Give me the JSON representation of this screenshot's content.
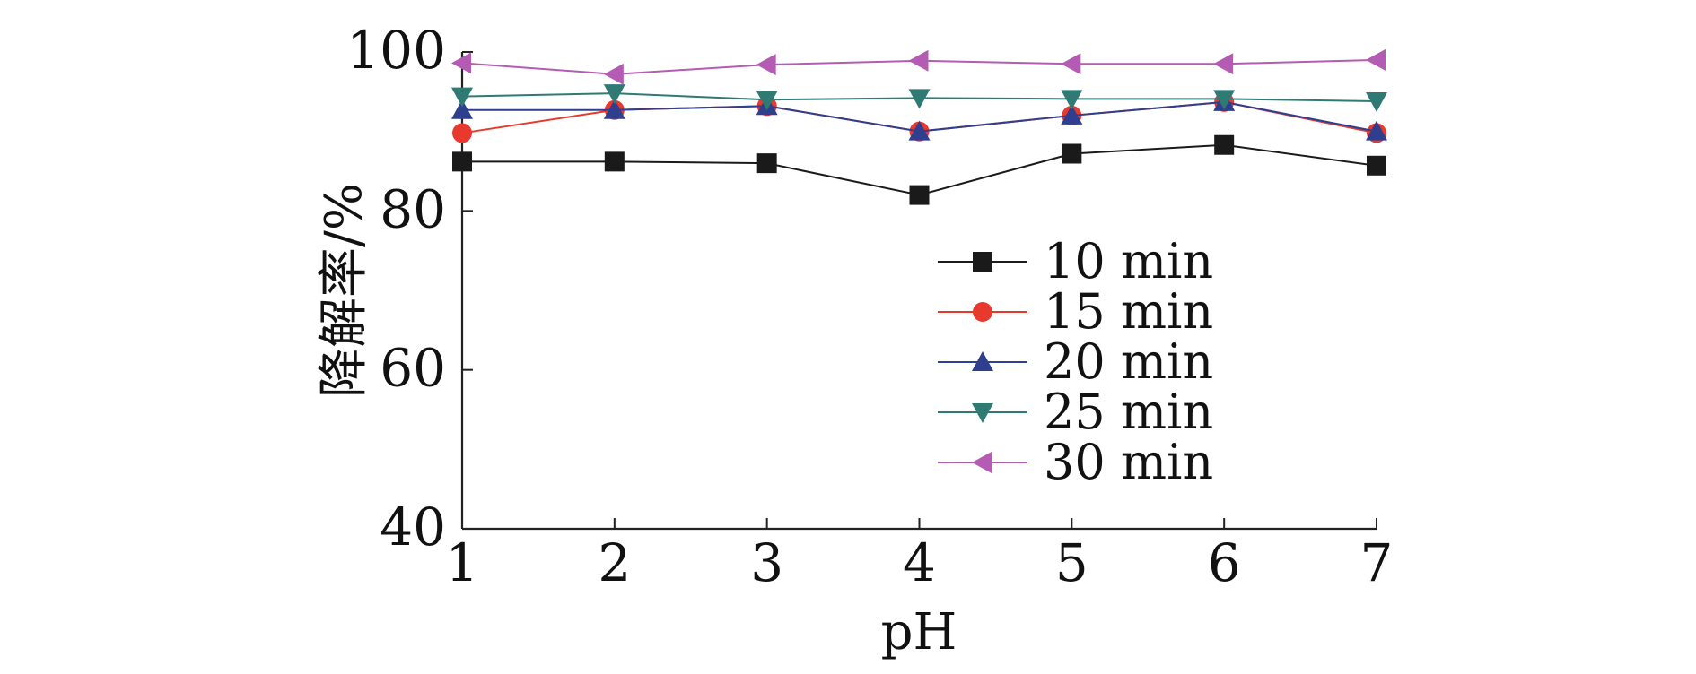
{
  "chart_data": {
    "type": "line",
    "xlabel": "pH",
    "ylabel": "降解率/%",
    "x": [
      1,
      2,
      3,
      4,
      5,
      6,
      7
    ],
    "xlim": [
      1,
      7
    ],
    "ylim": [
      40,
      100
    ],
    "xticks": [
      1,
      2,
      3,
      4,
      5,
      6,
      7
    ],
    "yticks": [
      40,
      60,
      80,
      100
    ],
    "grid": false,
    "legend_position": "right-center",
    "series": [
      {
        "name": "10 min",
        "color": "#1a1a1a",
        "marker": "square",
        "values": [
          86.2,
          86.2,
          86.0,
          82.0,
          87.2,
          88.3,
          85.7
        ]
      },
      {
        "name": "15 min",
        "color": "#e8392f",
        "marker": "circle",
        "values": [
          89.8,
          92.7,
          93.2,
          90.0,
          92.0,
          93.7,
          89.8
        ]
      },
      {
        "name": "20 min",
        "color": "#2f3f8f",
        "marker": "triangle-up",
        "values": [
          92.7,
          92.7,
          93.2,
          90.0,
          92.0,
          93.7,
          90.0
        ]
      },
      {
        "name": "25 min",
        "color": "#2f7a73",
        "marker": "triangle-down",
        "values": [
          94.4,
          94.8,
          94.0,
          94.2,
          94.1,
          94.1,
          93.8
        ]
      },
      {
        "name": "30 min",
        "color": "#b45bb3",
        "marker": "triangle-left",
        "values": [
          98.6,
          97.2,
          98.4,
          98.9,
          98.5,
          98.5,
          99.0
        ]
      }
    ]
  }
}
